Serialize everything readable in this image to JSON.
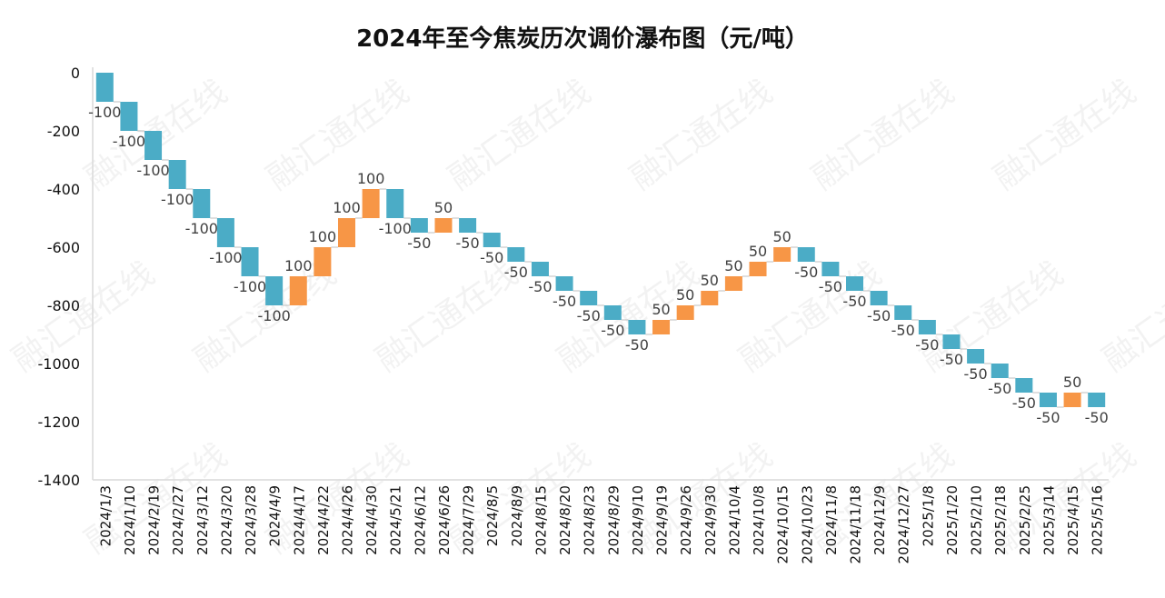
{
  "watermark": "融汇通在线",
  "colors": {
    "decrease": "#4bacc6",
    "increase": "#f79646",
    "axis": "#d9d9d9",
    "connector": "#bfbfbf",
    "text": "#404040"
  },
  "chart_data": {
    "type": "bar",
    "subtype": "waterfall",
    "title": "2024年至今焦炭历次调价瀑布图（元/吨）",
    "xlabel": "",
    "ylabel": "",
    "ylim": [
      -1400,
      0
    ],
    "yticks": [
      0,
      -200,
      -400,
      -600,
      -800,
      -1000,
      -1200,
      -1400
    ],
    "grid": false,
    "categories": [
      "2024/1/3",
      "2024/1/10",
      "2024/2/19",
      "2024/2/27",
      "2024/3/12",
      "2024/3/20",
      "2024/3/28",
      "2024/4/9",
      "2024/4/17",
      "2024/4/22",
      "2024/4/26",
      "2024/4/30",
      "2024/5/21",
      "2024/6/12",
      "2024/6/26",
      "2024/7/29",
      "2024/8/5",
      "2024/8/9",
      "2024/8/15",
      "2024/8/20",
      "2024/8/23",
      "2024/8/29",
      "2024/9/10",
      "2024/9/19",
      "2024/9/26",
      "2024/9/30",
      "2024/10/4",
      "2024/10/8",
      "2024/10/15",
      "2024/10/23",
      "2024/11/8",
      "2024/11/18",
      "2024/12/9",
      "2024/12/27",
      "2025/1/8",
      "2025/1/20",
      "2025/2/10",
      "2025/2/18",
      "2025/2/25",
      "2025/3/14",
      "2025/4/15",
      "2025/5/16"
    ],
    "values": [
      -100,
      -100,
      -100,
      -100,
      -100,
      -100,
      -100,
      -100,
      100,
      100,
      100,
      100,
      -100,
      -50,
      50,
      -50,
      -50,
      -50,
      -50,
      -50,
      -50,
      -50,
      -50,
      50,
      50,
      50,
      50,
      50,
      50,
      -50,
      -50,
      -50,
      -50,
      -50,
      -50,
      -50,
      -50,
      -50,
      -50,
      -50,
      50,
      -50
    ]
  }
}
